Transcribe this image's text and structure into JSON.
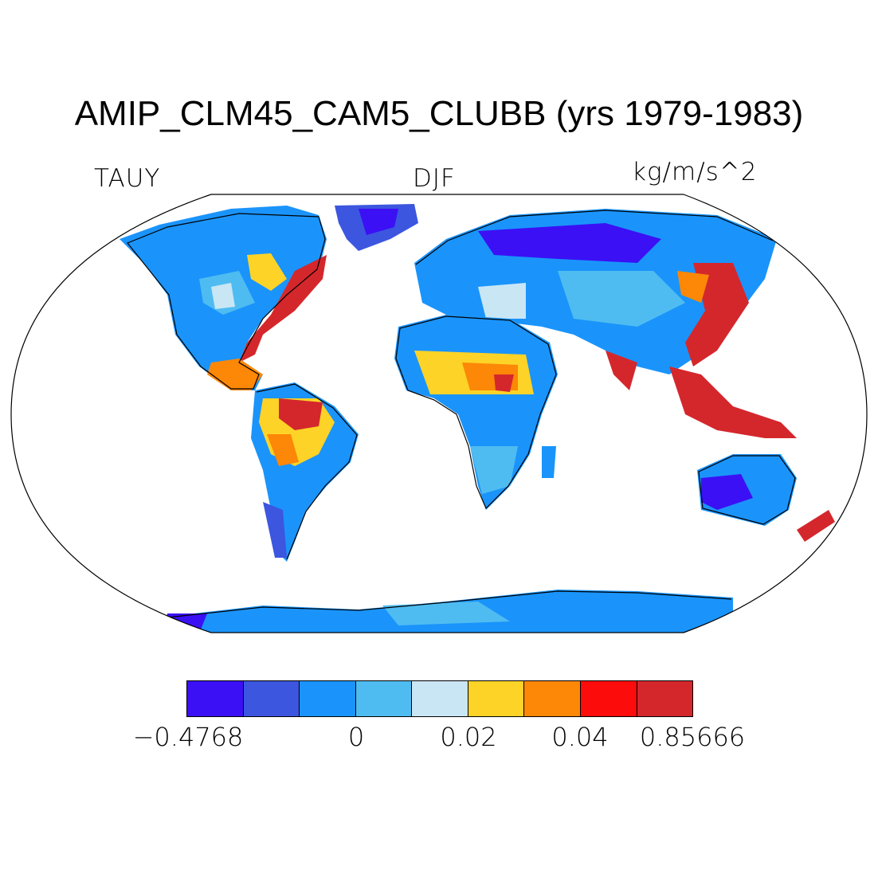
{
  "title": "AMIP_CLM45_CAM5_CLUBB (yrs 1979-1983)",
  "variable": "TAUY",
  "season": "DJF",
  "units": "kg/m/s^2",
  "colorbar": {
    "colors": [
      "#3b10f5",
      "#3c56df",
      "#1a94fb",
      "#4fbcf1",
      "#c9e6f5",
      "#fdd327",
      "#fd8706",
      "#fd0c0c",
      "#d4272c"
    ],
    "tick_labels": [
      "−0.4768",
      "0",
      "0.02",
      "0.04",
      "0.85666"
    ]
  },
  "map": {
    "projection": "robinson",
    "ocean_color": "#ffffff",
    "coastline_color": "#000000"
  }
}
